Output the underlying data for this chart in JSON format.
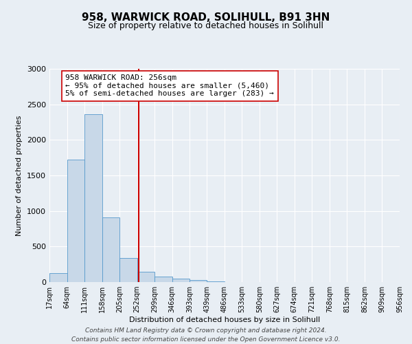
{
  "title": "958, WARWICK ROAD, SOLIHULL, B91 3HN",
  "subtitle": "Size of property relative to detached houses in Solihull",
  "xlabel": "Distribution of detached houses by size in Solihull",
  "ylabel": "Number of detached properties",
  "bin_edges": [
    17,
    64,
    111,
    158,
    205,
    252,
    299,
    346,
    393,
    439,
    486,
    533,
    580,
    627,
    674,
    721,
    768,
    815,
    862,
    909,
    956
  ],
  "bin_counts": [
    130,
    1720,
    2360,
    910,
    340,
    150,
    80,
    50,
    25,
    10,
    0,
    0,
    0,
    0,
    0,
    0,
    0,
    0,
    0,
    0
  ],
  "property_line_x": 256,
  "bar_color": "#c8d8e8",
  "bar_edge_color": "#5599cc",
  "vline_color": "#cc0000",
  "annotation_text": "958 WARWICK ROAD: 256sqm\n← 95% of detached houses are smaller (5,460)\n5% of semi-detached houses are larger (283) →",
  "annotation_box_color": "#ffffff",
  "annotation_box_edge": "#cc0000",
  "ylim": [
    0,
    3000
  ],
  "yticks": [
    0,
    500,
    1000,
    1500,
    2000,
    2500,
    3000
  ],
  "footer_line1": "Contains HM Land Registry data © Crown copyright and database right 2024.",
  "footer_line2": "Contains public sector information licensed under the Open Government Licence v3.0.",
  "background_color": "#e8eef4",
  "title_fontsize": 11,
  "subtitle_fontsize": 9,
  "tick_label_fontsize": 7,
  "axis_label_fontsize": 8,
  "footer_fontsize": 6.5,
  "annotation_fontsize": 8
}
